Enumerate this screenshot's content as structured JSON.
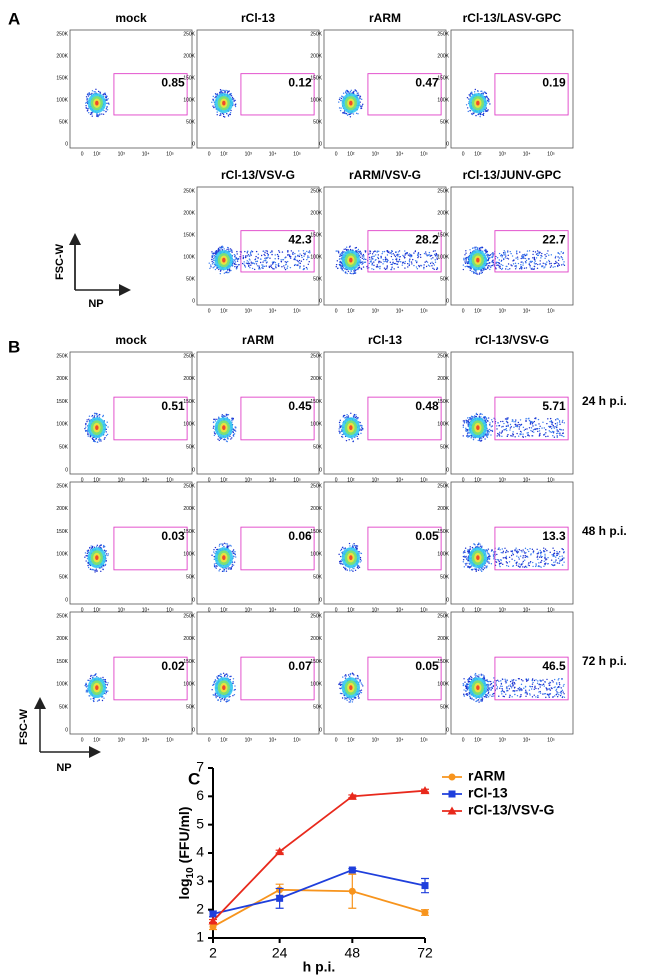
{
  "panel_labels": [
    "A",
    "B",
    "C"
  ],
  "flow_axis": {
    "y_label": "FSC-W",
    "x_label": "NP",
    "yticks": [
      "250K",
      "200K",
      "150K",
      "100K",
      "50K",
      "0"
    ],
    "xticks": [
      "0",
      "10²",
      "10³",
      "10⁴",
      "10⁵"
    ]
  },
  "panel_a": {
    "plots": [
      {
        "title": "mock",
        "gate": "0.85"
      },
      {
        "title": "rCl-13",
        "gate": "0.12"
      },
      {
        "title": "rARM",
        "gate": "0.47"
      },
      {
        "title": "rCl-13/LASV-GPC",
        "gate": "0.19"
      },
      {
        "title": "rCl-13/VSV-G",
        "gate": "42.3"
      },
      {
        "title": "rARM/VSV-G",
        "gate": "28.2"
      },
      {
        "title": "rCl-13/JUNV-GPC",
        "gate": "22.7"
      }
    ]
  },
  "panel_b": {
    "columns": [
      "mock",
      "rARM",
      "rCl-13",
      "rCl-13/VSV-G"
    ],
    "rows": [
      {
        "time": "24 h p.i.",
        "gates": [
          "0.51",
          "0.45",
          "0.48",
          "5.71"
        ]
      },
      {
        "time": "48 h p.i.",
        "gates": [
          "0.03",
          "0.06",
          "0.05",
          "13.3"
        ]
      },
      {
        "time": "72 h p.i.",
        "gates": [
          "0.02",
          "0.07",
          "0.05",
          "46.5"
        ]
      }
    ]
  },
  "chart_data": {
    "type": "line",
    "xlabel": "h p.i.",
    "ylabel": {
      "main": "log",
      "sub": "10",
      "rest": "(FFU/ml)"
    },
    "x": [
      2,
      24,
      48,
      72
    ],
    "xlim": [
      2,
      72
    ],
    "xticks": [
      2,
      24,
      48,
      72
    ],
    "ylim": [
      1,
      7
    ],
    "yticks": [
      1,
      2,
      3,
      4,
      5,
      6,
      7
    ],
    "series": [
      {
        "name": "rARM",
        "color": "#f7941d",
        "marker": "circle",
        "values": [
          1.4,
          2.7,
          2.65,
          1.9
        ],
        "errors": [
          0.1,
          0.2,
          0.6,
          0.1
        ]
      },
      {
        "name": "rCl-13",
        "color": "#1f3fdc",
        "marker": "square",
        "values": [
          1.85,
          2.4,
          3.4,
          2.85
        ],
        "errors": [
          0.1,
          0.35,
          0.05,
          0.25
        ]
      },
      {
        "name": "rCl-13/VSV-G",
        "color": "#e8291c",
        "marker": "triangle",
        "values": [
          1.6,
          4.05,
          6.0,
          6.2
        ],
        "errors": [
          0.05,
          0.05,
          0.05,
          0.05
        ]
      }
    ]
  }
}
